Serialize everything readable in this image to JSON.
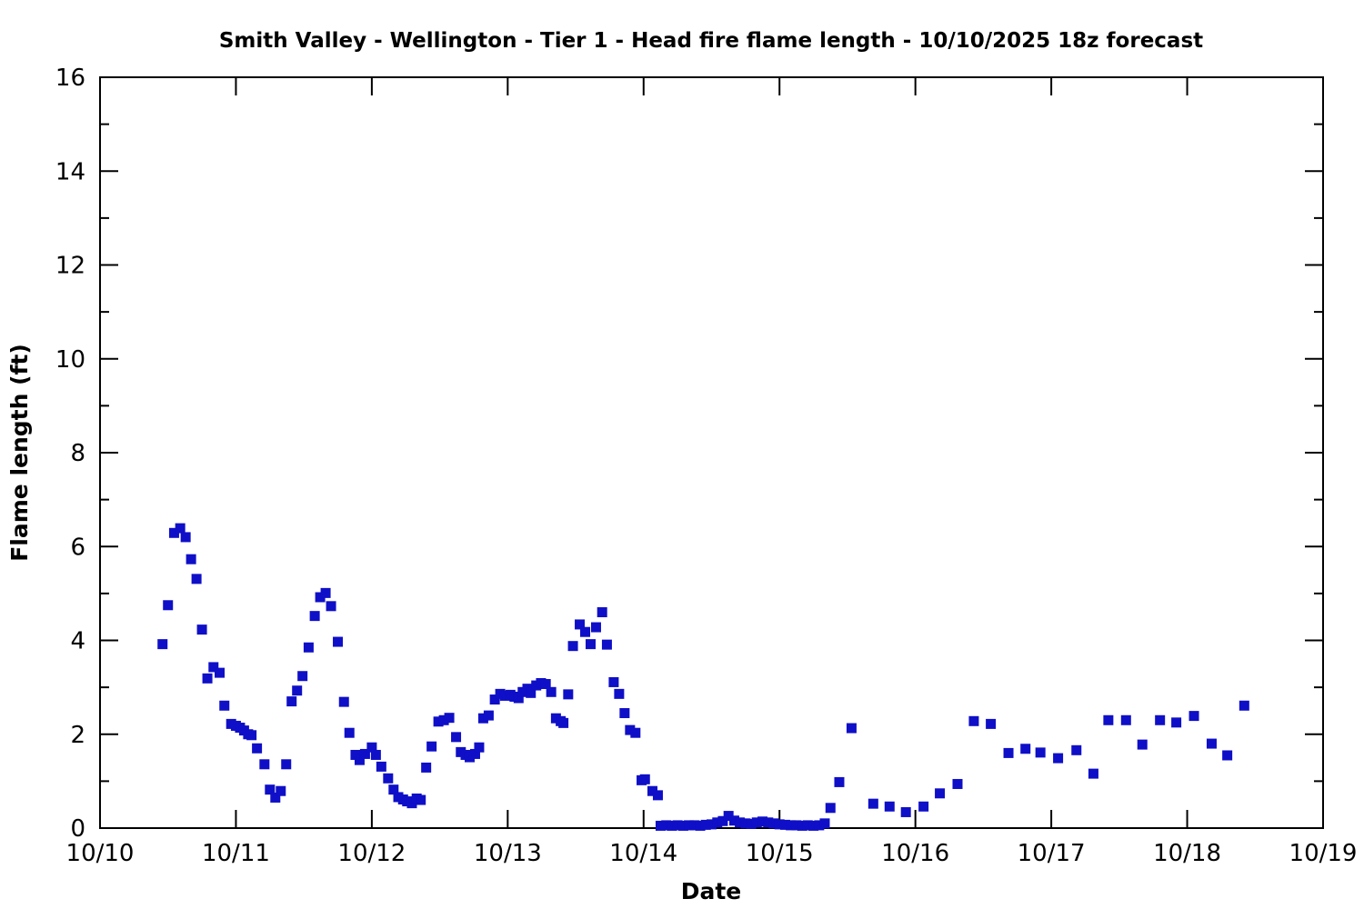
{
  "chart_data": {
    "type": "scatter",
    "title": "Smith Valley - Wellington - Tier 1 - Head fire flame length - 10/10/2025 18z forecast",
    "xlabel": "Date",
    "ylabel": "Flame length (ft)",
    "x_tick_labels": [
      "10/10",
      "10/11",
      "10/12",
      "10/13",
      "10/14",
      "10/15",
      "10/16",
      "10/17",
      "10/18",
      "10/19"
    ],
    "x_range_days": [
      0,
      9
    ],
    "ylim": [
      0,
      16
    ],
    "y_major_step": 2,
    "y_minor_step": 1,
    "grid": "off",
    "legend": "none",
    "marker": "filled-square",
    "marker_size_px": 11,
    "marker_color": "#0f0fc8",
    "axis_color": "#000000",
    "background_color": "#ffffff",
    "points": [
      [
        0.46,
        3.92
      ],
      [
        0.5,
        4.75
      ],
      [
        0.545,
        6.29
      ],
      [
        0.59,
        6.39
      ],
      [
        0.63,
        6.2
      ],
      [
        0.67,
        5.73
      ],
      [
        0.71,
        5.31
      ],
      [
        0.75,
        4.23
      ],
      [
        0.79,
        3.19
      ],
      [
        0.835,
        3.43
      ],
      [
        0.88,
        3.31
      ],
      [
        0.915,
        2.61
      ],
      [
        0.965,
        2.22
      ],
      [
        1.0,
        2.18
      ],
      [
        1.03,
        2.14
      ],
      [
        1.06,
        2.08
      ],
      [
        1.09,
        2.0
      ],
      [
        1.115,
        1.98
      ],
      [
        1.155,
        1.7
      ],
      [
        1.21,
        1.36
      ],
      [
        1.25,
        0.82
      ],
      [
        1.29,
        0.65
      ],
      [
        1.33,
        0.79
      ],
      [
        1.37,
        1.36
      ],
      [
        1.41,
        2.7
      ],
      [
        1.45,
        2.93
      ],
      [
        1.49,
        3.24
      ],
      [
        1.535,
        3.85
      ],
      [
        1.58,
        4.52
      ],
      [
        1.62,
        4.92
      ],
      [
        1.66,
        5.01
      ],
      [
        1.7,
        4.73
      ],
      [
        1.75,
        3.97
      ],
      [
        1.795,
        2.69
      ],
      [
        1.835,
        2.03
      ],
      [
        1.88,
        1.56
      ],
      [
        1.91,
        1.45
      ],
      [
        1.95,
        1.58
      ],
      [
        2.0,
        1.72
      ],
      [
        2.03,
        1.56
      ],
      [
        2.07,
        1.31
      ],
      [
        2.12,
        1.06
      ],
      [
        2.16,
        0.82
      ],
      [
        2.195,
        0.66
      ],
      [
        2.23,
        0.61
      ],
      [
        2.26,
        0.57
      ],
      [
        2.295,
        0.53
      ],
      [
        2.33,
        0.63
      ],
      [
        2.36,
        0.6
      ],
      [
        2.4,
        1.29
      ],
      [
        2.44,
        1.74
      ],
      [
        2.49,
        2.27
      ],
      [
        2.53,
        2.3
      ],
      [
        2.57,
        2.35
      ],
      [
        2.62,
        1.94
      ],
      [
        2.655,
        1.62
      ],
      [
        2.69,
        1.56
      ],
      [
        2.72,
        1.51
      ],
      [
        2.76,
        1.58
      ],
      [
        2.79,
        1.72
      ],
      [
        2.82,
        2.34
      ],
      [
        2.86,
        2.4
      ],
      [
        2.905,
        2.74
      ],
      [
        2.945,
        2.86
      ],
      [
        2.98,
        2.82
      ],
      [
        3.02,
        2.84
      ],
      [
        3.05,
        2.8
      ],
      [
        3.08,
        2.77
      ],
      [
        3.11,
        2.9
      ],
      [
        3.145,
        2.97
      ],
      [
        3.17,
        2.88
      ],
      [
        3.21,
        3.04
      ],
      [
        3.245,
        3.09
      ],
      [
        3.28,
        3.07
      ],
      [
        3.32,
        2.9
      ],
      [
        3.355,
        2.34
      ],
      [
        3.39,
        2.28
      ],
      [
        3.41,
        2.24
      ],
      [
        3.445,
        2.85
      ],
      [
        3.48,
        3.88
      ],
      [
        3.53,
        4.34
      ],
      [
        3.57,
        4.18
      ],
      [
        3.61,
        3.92
      ],
      [
        3.65,
        4.28
      ],
      [
        3.695,
        4.6
      ],
      [
        3.73,
        3.91
      ],
      [
        3.78,
        3.11
      ],
      [
        3.82,
        2.86
      ],
      [
        3.86,
        2.45
      ],
      [
        3.9,
        2.09
      ],
      [
        3.94,
        2.03
      ],
      [
        3.985,
        1.02
      ],
      [
        4.01,
        1.04
      ],
      [
        4.065,
        0.79
      ],
      [
        4.105,
        0.7
      ],
      [
        4.125,
        0.05
      ],
      [
        4.167,
        0.06
      ],
      [
        4.208,
        0.05
      ],
      [
        4.25,
        0.06
      ],
      [
        4.292,
        0.05
      ],
      [
        4.333,
        0.06
      ],
      [
        4.375,
        0.06
      ],
      [
        4.417,
        0.05
      ],
      [
        4.458,
        0.07
      ],
      [
        4.5,
        0.08
      ],
      [
        4.542,
        0.12
      ],
      [
        4.583,
        0.15
      ],
      [
        4.625,
        0.26
      ],
      [
        4.667,
        0.16
      ],
      [
        4.708,
        0.12
      ],
      [
        4.75,
        0.1
      ],
      [
        4.792,
        0.09
      ],
      [
        4.833,
        0.12
      ],
      [
        4.875,
        0.14
      ],
      [
        4.917,
        0.12
      ],
      [
        4.958,
        0.1
      ],
      [
        5.0,
        0.08
      ],
      [
        5.042,
        0.07
      ],
      [
        5.083,
        0.06
      ],
      [
        5.125,
        0.06
      ],
      [
        5.167,
        0.05
      ],
      [
        5.208,
        0.06
      ],
      [
        5.25,
        0.05
      ],
      [
        5.292,
        0.06
      ],
      [
        5.333,
        0.1
      ],
      [
        5.375,
        0.43
      ],
      [
        5.44,
        0.98
      ],
      [
        5.53,
        2.13
      ],
      [
        5.69,
        0.52
      ],
      [
        5.81,
        0.46
      ],
      [
        5.93,
        0.34
      ],
      [
        6.06,
        0.46
      ],
      [
        6.18,
        0.74
      ],
      [
        6.31,
        0.94
      ],
      [
        6.43,
        2.28
      ],
      [
        6.555,
        2.22
      ],
      [
        6.685,
        1.6
      ],
      [
        6.81,
        1.69
      ],
      [
        6.92,
        1.61
      ],
      [
        7.05,
        1.49
      ],
      [
        7.185,
        1.66
      ],
      [
        7.31,
        1.16
      ],
      [
        7.42,
        2.3
      ],
      [
        7.55,
        2.3
      ],
      [
        7.67,
        1.78
      ],
      [
        7.8,
        2.3
      ],
      [
        7.92,
        2.25
      ],
      [
        8.05,
        2.39
      ],
      [
        8.18,
        1.8
      ],
      [
        8.295,
        1.55
      ],
      [
        8.42,
        2.61
      ]
    ]
  }
}
